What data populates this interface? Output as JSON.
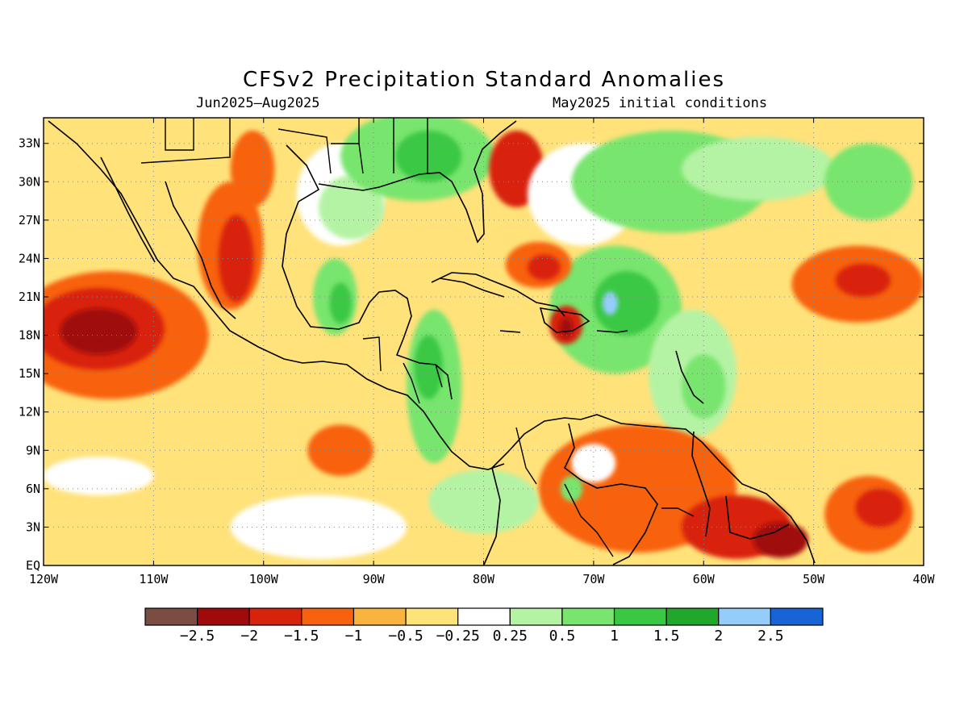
{
  "title": "CFSv2 Precipitation Standard Anomalies",
  "subtitle_left": "Jun2025–Aug2025",
  "subtitle_right": "May2025 initial conditions",
  "map": {
    "lon_range": [
      -120,
      -40
    ],
    "lat_range": [
      0,
      35
    ],
    "lat_ticks": [
      "33N",
      "30N",
      "27N",
      "24N",
      "21N",
      "18N",
      "15N",
      "12N",
      "9N",
      "6N",
      "3N",
      "EQ"
    ],
    "lat_values": [
      33,
      30,
      27,
      24,
      21,
      18,
      15,
      12,
      9,
      6,
      3,
      0
    ],
    "lon_ticks": [
      "120W",
      "110W",
      "100W",
      "90W",
      "80W",
      "70W",
      "60W",
      "50W",
      "40W"
    ],
    "lon_values": [
      -120,
      -110,
      -100,
      -90,
      -80,
      -70,
      -60,
      -50,
      -40
    ],
    "background_color": "#ffe27a"
  },
  "colorbar": {
    "colors": [
      "#7a4c42",
      "#a00a0a",
      "#d8230c",
      "#f8620e",
      "#fbb33f",
      "#fee27a",
      "#ffffff",
      "#b5f3a4",
      "#78e56e",
      "#3ac844",
      "#20a82a",
      "#94cdfa",
      "#1764d6"
    ],
    "labels": [
      "−2.5",
      "−2",
      "−1.5",
      "−1",
      "−0.5",
      "−0.25",
      "0.25",
      "0.5",
      "1",
      "1.5",
      "2",
      "2.5"
    ]
  },
  "anomaly_blobs": [
    {
      "lon": -114,
      "lat": 18,
      "rx": 9,
      "ry": 5,
      "level": "#f8620e"
    },
    {
      "lon": -115,
      "lat": 18.5,
      "rx": 6,
      "ry": 3.2,
      "level": "#d8230c"
    },
    {
      "lon": -115,
      "lat": 18.3,
      "rx": 3.5,
      "ry": 1.8,
      "level": "#a00a0a"
    },
    {
      "lon": -103,
      "lat": 25,
      "rx": 3,
      "ry": 5,
      "level": "#f8620e"
    },
    {
      "lon": -102.5,
      "lat": 24,
      "rx": 1.6,
      "ry": 3.4,
      "level": "#d8230c"
    },
    {
      "lon": -101,
      "lat": 31,
      "rx": 2,
      "ry": 3,
      "level": "#f8620e"
    },
    {
      "lon": -93,
      "lat": 29,
      "rx": 4,
      "ry": 4,
      "level": "#ffffff"
    },
    {
      "lon": -92,
      "lat": 28,
      "rx": 3,
      "ry": 2.5,
      "level": "#b5f3a4"
    },
    {
      "lon": -93.5,
      "lat": 21,
      "rx": 2,
      "ry": 3,
      "level": "#78e56e"
    },
    {
      "lon": -93,
      "lat": 20.5,
      "rx": 1,
      "ry": 1.6,
      "level": "#3ac844"
    },
    {
      "lon": -86,
      "lat": 32,
      "rx": 7,
      "ry": 3.5,
      "level": "#78e56e"
    },
    {
      "lon": -85,
      "lat": 32,
      "rx": 3,
      "ry": 2,
      "level": "#3ac844"
    },
    {
      "lon": -77,
      "lat": 31,
      "rx": 2.5,
      "ry": 3,
      "level": "#d8230c"
    },
    {
      "lon": -71,
      "lat": 29,
      "rx": 5,
      "ry": 4,
      "level": "#ffffff"
    },
    {
      "lon": -63,
      "lat": 30,
      "rx": 9,
      "ry": 4,
      "level": "#78e56e"
    },
    {
      "lon": -55,
      "lat": 31,
      "rx": 7,
      "ry": 2.5,
      "level": "#b5f3a4"
    },
    {
      "lon": -45,
      "lat": 30,
      "rx": 4,
      "ry": 3,
      "level": "#78e56e"
    },
    {
      "lon": -68,
      "lat": 20,
      "rx": 6,
      "ry": 5,
      "level": "#78e56e"
    },
    {
      "lon": -67,
      "lat": 20.5,
      "rx": 3,
      "ry": 2.5,
      "level": "#3ac844"
    },
    {
      "lon": -68.5,
      "lat": 20.5,
      "rx": 0.7,
      "ry": 0.9,
      "level": "#94cdfa"
    },
    {
      "lon": -61,
      "lat": 15,
      "rx": 4,
      "ry": 5,
      "level": "#b5f3a4"
    },
    {
      "lon": -60,
      "lat": 14,
      "rx": 2,
      "ry": 2.5,
      "level": "#78e56e"
    },
    {
      "lon": -84.5,
      "lat": 14,
      "rx": 2.5,
      "ry": 6,
      "level": "#78e56e"
    },
    {
      "lon": -85,
      "lat": 15.5,
      "rx": 1.3,
      "ry": 2.5,
      "level": "#3ac844"
    },
    {
      "lon": -75,
      "lat": 23.5,
      "rx": 3,
      "ry": 1.8,
      "level": "#f8620e"
    },
    {
      "lon": -74.5,
      "lat": 23.3,
      "rx": 1.5,
      "ry": 1,
      "level": "#d8230c"
    },
    {
      "lon": -72.5,
      "lat": 18.8,
      "rx": 1.5,
      "ry": 1.5,
      "level": "#d8230c"
    },
    {
      "lon": -72.5,
      "lat": 18.6,
      "rx": 0.6,
      "ry": 0.8,
      "level": "#a00a0a"
    },
    {
      "lon": -46,
      "lat": 22,
      "rx": 6,
      "ry": 3,
      "level": "#f8620e"
    },
    {
      "lon": -45.5,
      "lat": 22.3,
      "rx": 2.5,
      "ry": 1.3,
      "level": "#d8230c"
    },
    {
      "lon": -66,
      "lat": 6,
      "rx": 9,
      "ry": 5,
      "level": "#f8620e"
    },
    {
      "lon": -70,
      "lat": 8,
      "rx": 2,
      "ry": 1.5,
      "level": "#ffffff"
    },
    {
      "lon": -72,
      "lat": 6,
      "rx": 1,
      "ry": 1,
      "level": "#78e56e"
    },
    {
      "lon": -57,
      "lat": 3,
      "rx": 5,
      "ry": 2.5,
      "level": "#d8230c"
    },
    {
      "lon": -53,
      "lat": 2,
      "rx": 2.5,
      "ry": 1.4,
      "level": "#a00a0a"
    },
    {
      "lon": -45,
      "lat": 4,
      "rx": 4,
      "ry": 3,
      "level": "#f8620e"
    },
    {
      "lon": -44,
      "lat": 4.5,
      "rx": 2.2,
      "ry": 1.5,
      "level": "#d8230c"
    },
    {
      "lon": -93,
      "lat": 9,
      "rx": 3,
      "ry": 2,
      "level": "#f8620e"
    },
    {
      "lon": -80,
      "lat": 5,
      "rx": 5,
      "ry": 2.5,
      "level": "#b5f3a4"
    },
    {
      "lon": -95,
      "lat": 3,
      "rx": 8,
      "ry": 2.5,
      "level": "#ffffff"
    },
    {
      "lon": -115,
      "lat": 7,
      "rx": 5,
      "ry": 1.5,
      "level": "#ffffff"
    }
  ]
}
